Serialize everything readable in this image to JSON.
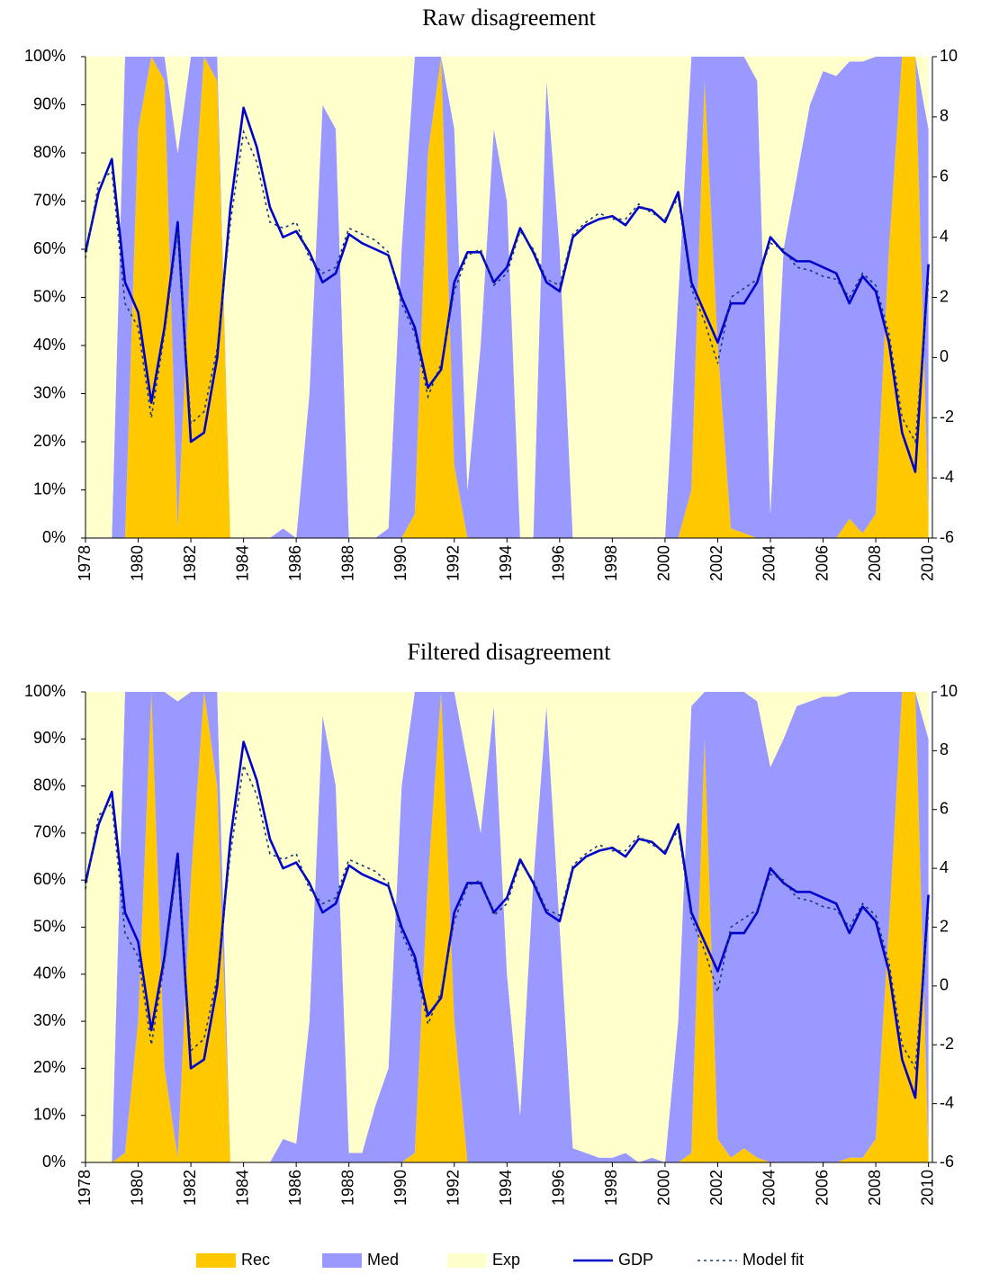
{
  "chart_data": [
    {
      "type": "area",
      "title": "Raw disagreement",
      "x": [
        1978,
        1978.5,
        1979,
        1979.5,
        1980,
        1980.5,
        1981,
        1981.5,
        1982,
        1982.5,
        1983,
        1983.5,
        1984,
        1984.5,
        1985,
        1985.5,
        1986,
        1986.5,
        1987,
        1987.5,
        1988,
        1988.5,
        1989,
        1989.5,
        1990,
        1990.5,
        1991,
        1991.5,
        1992,
        1992.5,
        1993,
        1993.5,
        1994,
        1994.5,
        1995,
        1995.5,
        1996,
        1996.5,
        1997,
        1997.5,
        1998,
        1998.5,
        1999,
        1999.5,
        2000,
        2000.5,
        2001,
        2001.5,
        2002,
        2002.5,
        2003,
        2003.5,
        2004,
        2004.5,
        2005,
        2005.5,
        2006,
        2006.5,
        2007,
        2007.5,
        2008,
        2008.5,
        2009,
        2009.5,
        2010
      ],
      "xlim": [
        1978,
        2010.15
      ],
      "xticks": [
        1978,
        1980,
        1982,
        1984,
        1986,
        1988,
        1990,
        1992,
        1994,
        1996,
        1998,
        2000,
        2002,
        2004,
        2006,
        2008,
        2010
      ],
      "ylim": [
        0,
        100
      ],
      "yticks": [
        {
          "value": 0,
          "label": "0%"
        },
        {
          "value": 10,
          "label": "10%"
        },
        {
          "value": 20,
          "label": "20%"
        },
        {
          "value": 30,
          "label": "30%"
        },
        {
          "value": 40,
          "label": "40%"
        },
        {
          "value": 50,
          "label": "50%"
        },
        {
          "value": 60,
          "label": "60%"
        },
        {
          "value": 70,
          "label": "70%"
        },
        {
          "value": 80,
          "label": "80%"
        },
        {
          "value": 90,
          "label": "90%"
        },
        {
          "value": 100,
          "label": "100%"
        }
      ],
      "y2lim": [
        -6,
        10
      ],
      "y2ticks": [
        -6,
        -4,
        -2,
        0,
        2,
        4,
        6,
        8,
        10
      ],
      "series": [
        {
          "name": "Rec",
          "type": "area",
          "color": "#ffc800",
          "values": [
            0,
            0,
            0,
            0,
            85,
            100,
            95,
            2,
            60,
            100,
            95,
            0,
            0,
            0,
            0,
            0,
            0,
            0,
            0,
            0,
            0,
            0,
            0,
            0,
            0,
            5,
            80,
            100,
            15,
            0,
            0,
            0,
            0,
            0,
            0,
            0,
            0,
            0,
            0,
            0,
            0,
            0,
            0,
            0,
            0,
            0,
            10,
            95,
            40,
            2,
            1,
            0,
            0,
            0,
            0,
            0,
            0,
            0,
            4,
            1,
            5,
            60,
            100,
            100,
            5
          ]
        },
        {
          "name": "Med",
          "type": "area",
          "color": "#9999ff",
          "values": [
            0,
            0,
            0,
            100,
            15,
            0,
            5,
            78,
            40,
            0,
            5,
            0,
            0,
            0,
            0,
            2,
            0,
            30,
            90,
            85,
            0,
            0,
            0,
            2,
            60,
            95,
            20,
            0,
            70,
            10,
            40,
            85,
            70,
            0,
            0,
            95,
            60,
            0,
            0,
            0,
            0,
            0,
            0,
            0,
            0,
            50,
            90,
            5,
            60,
            98,
            99,
            95,
            5,
            60,
            75,
            90,
            97,
            96,
            95,
            98,
            95,
            40,
            0,
            0,
            80
          ]
        },
        {
          "name": "Exp",
          "type": "area",
          "color": "#ffffcc",
          "values": [
            100,
            100,
            100,
            0,
            0,
            0,
            0,
            20,
            0,
            0,
            0,
            100,
            100,
            100,
            100,
            98,
            100,
            70,
            10,
            15,
            100,
            100,
            100,
            98,
            40,
            0,
            0,
            0,
            15,
            90,
            60,
            15,
            30,
            100,
            100,
            5,
            40,
            100,
            100,
            100,
            100,
            100,
            100,
            100,
            100,
            50,
            0,
            0,
            0,
            0,
            0,
            5,
            95,
            40,
            25,
            10,
            3,
            4,
            1,
            1,
            0,
            0,
            0,
            0,
            15
          ]
        },
        {
          "name": "GDP",
          "type": "line",
          "axis": "y2",
          "color": "#0000cc",
          "values": [
            3.5,
            5.5,
            6.6,
            2.5,
            1.5,
            -1.5,
            1,
            4.5,
            -2.8,
            -2.5,
            0,
            5,
            8.3,
            7,
            5,
            4,
            4.2,
            3.5,
            2.5,
            2.8,
            4.1,
            3.8,
            3.6,
            3.4,
            2,
            1,
            -1,
            -0.4,
            2.5,
            3.5,
            3.5,
            2.5,
            3,
            4.3,
            3.5,
            2.5,
            2.2,
            4,
            4.4,
            4.6,
            4.7,
            4.4,
            5,
            4.9,
            4.5,
            5.5,
            2.5,
            1.5,
            0.5,
            1.8,
            1.8,
            2.5,
            4,
            3.5,
            3.2,
            3.2,
            3,
            2.8,
            1.8,
            2.7,
            2.2,
            0.5,
            -2.5,
            -3.8,
            3.1
          ]
        },
        {
          "name": "Model fit",
          "type": "dotted-line",
          "axis": "y2",
          "color": "#1a3a6e",
          "values": [
            3.3,
            5.8,
            6.2,
            1.8,
            1.0,
            -2.0,
            0.8,
            4.2,
            -2.2,
            -1.8,
            0.3,
            4.5,
            7.5,
            6.5,
            4.5,
            4.3,
            4.5,
            3.3,
            2.8,
            3.0,
            4.3,
            4.1,
            3.9,
            3.5,
            1.8,
            0.8,
            -1.3,
            -0.2,
            2.2,
            3.4,
            3.6,
            2.4,
            2.8,
            4.2,
            3.6,
            2.6,
            2.4,
            4.1,
            4.5,
            4.8,
            4.6,
            4.6,
            5.1,
            4.8,
            4.6,
            5.3,
            2.3,
            1.2,
            -0.2,
            2.0,
            2.3,
            2.6,
            3.8,
            3.6,
            3.0,
            2.9,
            2.7,
            2.6,
            2.0,
            2.8,
            2.4,
            0.8,
            -2.0,
            -2.8,
            2.5
          ]
        }
      ]
    },
    {
      "type": "area",
      "title": "Filtered disagreement",
      "x": [
        1978,
        1978.5,
        1979,
        1979.5,
        1980,
        1980.5,
        1981,
        1981.5,
        1982,
        1982.5,
        1983,
        1983.5,
        1984,
        1984.5,
        1985,
        1985.5,
        1986,
        1986.5,
        1987,
        1987.5,
        1988,
        1988.5,
        1989,
        1989.5,
        1990,
        1990.5,
        1991,
        1991.5,
        1992,
        1992.5,
        1993,
        1993.5,
        1994,
        1994.5,
        1995,
        1995.5,
        1996,
        1996.5,
        1997,
        1997.5,
        1998,
        1998.5,
        1999,
        1999.5,
        2000,
        2000.5,
        2001,
        2001.5,
        2002,
        2002.5,
        2003,
        2003.5,
        2004,
        2004.5,
        2005,
        2005.5,
        2006,
        2006.5,
        2007,
        2007.5,
        2008,
        2008.5,
        2009,
        2009.5,
        2010
      ],
      "xlim": [
        1978,
        2010.15
      ],
      "xticks": [
        1978,
        1980,
        1982,
        1984,
        1986,
        1988,
        1990,
        1992,
        1994,
        1996,
        1998,
        2000,
        2002,
        2004,
        2006,
        2008,
        2010
      ],
      "ylim": [
        0,
        100
      ],
      "yticks": [
        {
          "value": 0,
          "label": "0%"
        },
        {
          "value": 10,
          "label": "10%"
        },
        {
          "value": 20,
          "label": "20%"
        },
        {
          "value": 30,
          "label": "30%"
        },
        {
          "value": 40,
          "label": "40%"
        },
        {
          "value": 50,
          "label": "50%"
        },
        {
          "value": 60,
          "label": "60%"
        },
        {
          "value": 70,
          "label": "70%"
        },
        {
          "value": 80,
          "label": "80%"
        },
        {
          "value": 90,
          "label": "90%"
        },
        {
          "value": 100,
          "label": "100%"
        }
      ],
      "y2lim": [
        -6,
        10
      ],
      "y2ticks": [
        -6,
        -4,
        -2,
        0,
        2,
        4,
        6,
        8,
        10
      ],
      "series": [
        {
          "name": "Rec",
          "type": "area",
          "color": "#ffc800",
          "values": [
            0,
            0,
            0,
            2,
            30,
            100,
            20,
            1,
            60,
            100,
            80,
            0,
            0,
            0,
            0,
            0,
            0,
            0,
            0,
            0,
            0,
            0,
            0,
            0,
            0,
            2,
            60,
            100,
            30,
            0,
            0,
            0,
            0,
            0,
            0,
            0,
            0,
            0,
            0,
            0,
            0,
            0,
            0,
            0,
            0,
            0,
            2,
            90,
            5,
            1,
            3,
            1,
            0,
            0,
            0,
            0,
            0,
            0,
            1,
            1,
            5,
            50,
            100,
            100,
            2
          ]
        },
        {
          "name": "Med",
          "type": "area",
          "color": "#9999ff",
          "values": [
            0,
            0,
            0,
            98,
            70,
            0,
            80,
            97,
            40,
            0,
            20,
            0,
            0,
            0,
            0,
            5,
            4,
            30,
            95,
            80,
            2,
            2,
            12,
            20,
            80,
            98,
            40,
            0,
            70,
            85,
            70,
            97,
            40,
            10,
            60,
            97,
            50,
            3,
            2,
            1,
            1,
            2,
            0,
            1,
            0,
            30,
            95,
            10,
            95,
            99,
            97,
            97,
            84,
            90,
            97,
            98,
            99,
            99,
            99,
            99,
            95,
            50,
            0,
            0,
            88
          ]
        },
        {
          "name": "Exp",
          "type": "area",
          "color": "#ffffcc",
          "values": [
            100,
            100,
            100,
            0,
            0,
            0,
            0,
            2,
            0,
            0,
            0,
            100,
            100,
            100,
            100,
            95,
            96,
            70,
            5,
            20,
            98,
            98,
            88,
            80,
            20,
            0,
            0,
            0,
            0,
            15,
            30,
            3,
            60,
            90,
            40,
            3,
            50,
            97,
            98,
            99,
            99,
            98,
            100,
            99,
            100,
            70,
            3,
            0,
            0,
            0,
            0,
            2,
            16,
            10,
            3,
            2,
            1,
            1,
            0,
            0,
            0,
            0,
            0,
            0,
            10
          ]
        },
        {
          "name": "GDP",
          "type": "line",
          "axis": "y2",
          "color": "#0000cc",
          "values": [
            3.5,
            5.5,
            6.6,
            2.5,
            1.5,
            -1.5,
            1,
            4.5,
            -2.8,
            -2.5,
            0,
            5,
            8.3,
            7,
            5,
            4,
            4.2,
            3.5,
            2.5,
            2.8,
            4.1,
            3.8,
            3.6,
            3.4,
            2,
            1,
            -1,
            -0.4,
            2.5,
            3.5,
            3.5,
            2.5,
            3,
            4.3,
            3.5,
            2.5,
            2.2,
            4,
            4.4,
            4.6,
            4.7,
            4.4,
            5,
            4.9,
            4.5,
            5.5,
            2.5,
            1.5,
            0.5,
            1.8,
            1.8,
            2.5,
            4,
            3.5,
            3.2,
            3.2,
            3,
            2.8,
            1.8,
            2.7,
            2.2,
            0.5,
            -2.5,
            -3.8,
            3.1
          ]
        },
        {
          "name": "Model fit",
          "type": "dotted-line",
          "axis": "y2",
          "color": "#1a3a6e",
          "values": [
            3.3,
            5.8,
            6.2,
            1.8,
            1.0,
            -2.0,
            0.8,
            4.2,
            -2.2,
            -1.8,
            0.3,
            4.5,
            7.5,
            6.5,
            4.5,
            4.3,
            4.5,
            3.3,
            2.8,
            3.0,
            4.3,
            4.1,
            3.9,
            3.5,
            1.8,
            0.8,
            -1.3,
            -0.2,
            2.2,
            3.4,
            3.6,
            2.4,
            2.8,
            4.2,
            3.6,
            2.6,
            2.4,
            4.1,
            4.5,
            4.8,
            4.6,
            4.6,
            5.1,
            4.8,
            4.6,
            5.3,
            2.3,
            1.2,
            -0.2,
            2.0,
            2.3,
            2.6,
            3.8,
            3.6,
            3.0,
            2.9,
            2.7,
            2.6,
            2.0,
            2.8,
            2.4,
            0.8,
            -2.0,
            -2.8,
            2.5
          ]
        }
      ]
    }
  ]
}
